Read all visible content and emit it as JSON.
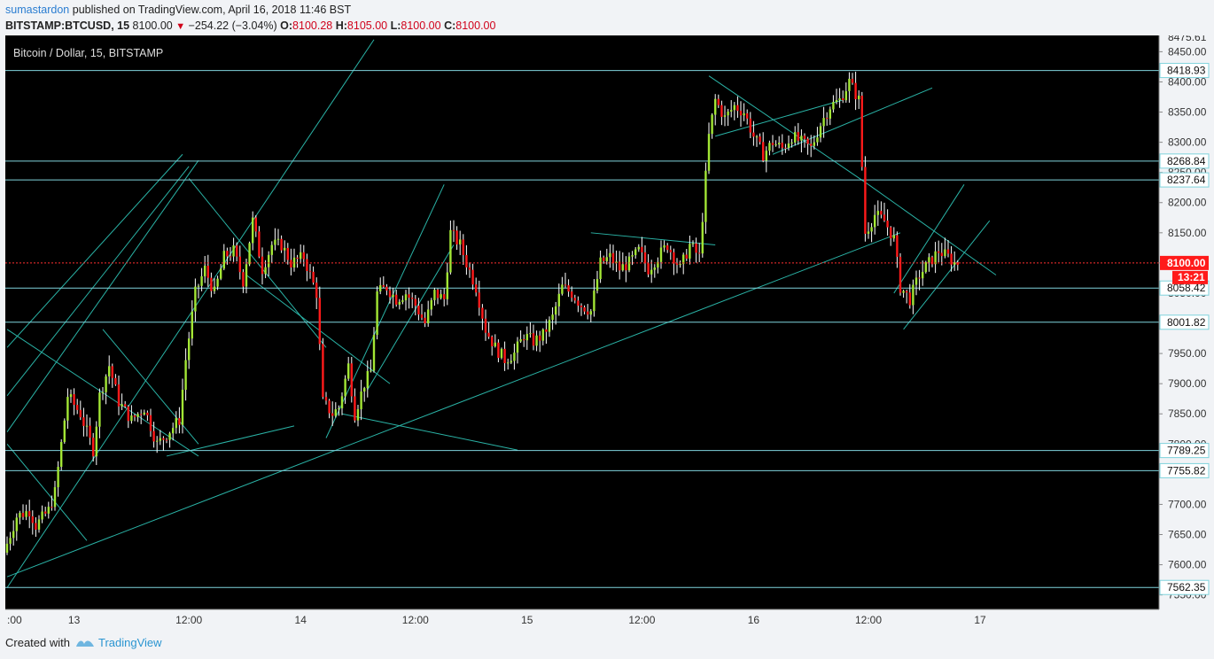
{
  "header": {
    "user": "sumastardon",
    "published": "published on TradingView.com, April 16, 2018 11:46 BST",
    "symbol": "BITSTAMP:BTCUSD, 15",
    "last": "8100.00",
    "change": "−254.22 (−3.04%)",
    "o_label": "O:",
    "o_val": "8100.28",
    "h_label": "H:",
    "h_val": "8105.00",
    "l_label": "L:",
    "l_val": "8100.00",
    "c_label": "C:",
    "c_val": "8100.00"
  },
  "footer": {
    "created_with": "Created with",
    "brand": "TradingView"
  },
  "colors": {
    "background": "#000000",
    "up": "#a3e635",
    "down": "#ff1a1a",
    "wick": "#ffffff",
    "trendline": "#2ab3a6",
    "level": "#7fd3dc",
    "price_line": "#ff3030",
    "axis_bg": "#f1f3f6"
  },
  "chart_data": {
    "type": "candlestick",
    "title": "Bitcoin / Dollar, 15, BITSTAMP",
    "ylim": [
      7526,
      8477
    ],
    "y_ticks": [
      7550,
      7600,
      7650,
      7700,
      7750,
      7800,
      7850,
      7900,
      7950,
      8000,
      8050,
      8100,
      8150,
      8200,
      8250,
      8300,
      8350,
      8400,
      8450
    ],
    "x_labels": [
      ":00",
      "13",
      "12:00",
      "14",
      "12:00",
      "15",
      "12:00",
      "16",
      "12:00",
      "17"
    ],
    "levels": [
      {
        "label": "8418.93",
        "value": 8418.93
      },
      {
        "label": "8268.84",
        "value": 8268.84
      },
      {
        "label": "8237.64",
        "value": 8237.64
      },
      {
        "label": "8058.42",
        "value": 8058.42
      },
      {
        "label": "8001.82",
        "value": 8001.82
      },
      {
        "label": "7789.25",
        "value": 7789.25
      },
      {
        "label": "7755.82",
        "value": 7755.82
      },
      {
        "label": "7562.35",
        "value": 7562.35
      }
    ],
    "top_clipped_label": "8475.61",
    "current_price": {
      "label": "8100.00",
      "value": 8100.0,
      "countdown": "13:21"
    },
    "price_path": [
      [
        0,
        7620
      ],
      [
        4,
        7680
      ],
      [
        8,
        7690
      ],
      [
        10,
        7665
      ],
      [
        14,
        7690
      ],
      [
        16,
        7720
      ],
      [
        20,
        7880
      ],
      [
        24,
        7850
      ],
      [
        28,
        7790
      ],
      [
        30,
        7880
      ],
      [
        33,
        7930
      ],
      [
        36,
        7870
      ],
      [
        40,
        7840
      ],
      [
        44,
        7860
      ],
      [
        48,
        7800
      ],
      [
        50,
        7810
      ],
      [
        55,
        7840
      ],
      [
        57,
        7940
      ],
      [
        60,
        8050
      ],
      [
        63,
        8090
      ],
      [
        66,
        8050
      ],
      [
        69,
        8110
      ],
      [
        72,
        8120
      ],
      [
        75,
        8070
      ],
      [
        78,
        8170
      ],
      [
        81,
        8090
      ],
      [
        84,
        8130
      ],
      [
        87,
        8130
      ],
      [
        90,
        8100
      ],
      [
        94,
        8110
      ],
      [
        98,
        8050
      ],
      [
        100,
        7870
      ],
      [
        103,
        7850
      ],
      [
        105,
        7860
      ],
      [
        108,
        7930
      ],
      [
        110,
        7850
      ],
      [
        113,
        7900
      ],
      [
        115,
        7920
      ],
      [
        117,
        8050
      ],
      [
        120,
        8060
      ],
      [
        123,
        8040
      ],
      [
        126,
        8050
      ],
      [
        129,
        8030
      ],
      [
        132,
        8000
      ],
      [
        135,
        8050
      ],
      [
        138,
        8040
      ],
      [
        140,
        8150
      ],
      [
        143,
        8130
      ],
      [
        145,
        8100
      ],
      [
        148,
        8060
      ],
      [
        151,
        7990
      ],
      [
        154,
        7960
      ],
      [
        157,
        7940
      ],
      [
        160,
        7950
      ],
      [
        163,
        7980
      ],
      [
        166,
        7970
      ],
      [
        169,
        7980
      ],
      [
        172,
        8010
      ],
      [
        175,
        8060
      ],
      [
        178,
        8050
      ],
      [
        181,
        8030
      ],
      [
        184,
        8020
      ],
      [
        187,
        8100
      ],
      [
        190,
        8110
      ],
      [
        193,
        8090
      ],
      [
        196,
        8100
      ],
      [
        199,
        8120
      ],
      [
        202,
        8090
      ],
      [
        205,
        8110
      ],
      [
        208,
        8130
      ],
      [
        212,
        8090
      ],
      [
        215,
        8130
      ],
      [
        218,
        8110
      ],
      [
        221,
        8310
      ],
      [
        223,
        8370
      ],
      [
        226,
        8340
      ],
      [
        229,
        8360
      ],
      [
        232,
        8350
      ],
      [
        235,
        8310
      ],
      [
        238,
        8280
      ],
      [
        241,
        8300
      ],
      [
        244,
        8290
      ],
      [
        247,
        8310
      ],
      [
        250,
        8300
      ],
      [
        253,
        8290
      ],
      [
        256,
        8330
      ],
      [
        259,
        8360
      ],
      [
        262,
        8370
      ],
      [
        265,
        8400
      ],
      [
        268,
        8370
      ],
      [
        270,
        8150
      ],
      [
        273,
        8180
      ],
      [
        276,
        8170
      ],
      [
        279,
        8140
      ],
      [
        281,
        8060
      ],
      [
        284,
        8040
      ],
      [
        287,
        8080
      ],
      [
        290,
        8100
      ],
      [
        293,
        8120
      ],
      [
        296,
        8110
      ],
      [
        298,
        8100
      ]
    ]
  }
}
